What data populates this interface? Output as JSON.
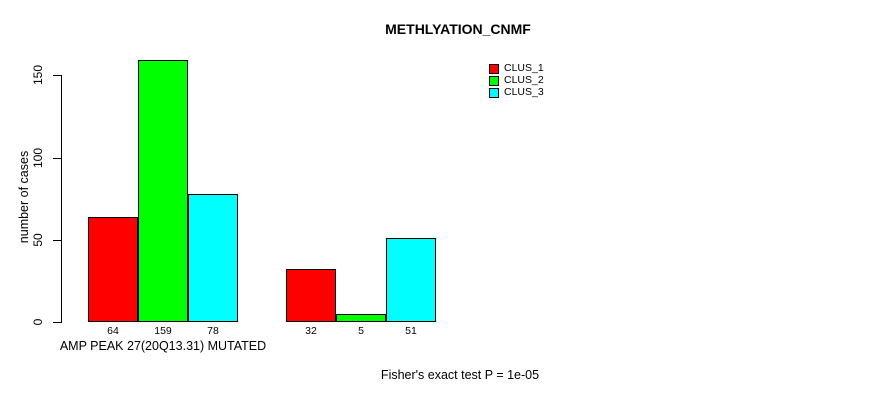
{
  "chart_data": {
    "type": "bar",
    "title": "METHLYATION_CNMF",
    "ylabel": "number of cases",
    "caption": "Fisher's exact test P = 1e-05",
    "yticks": [
      0,
      50,
      100,
      150
    ],
    "ylim": [
      0,
      165
    ],
    "grid": false,
    "legend_position": "top-right",
    "bar_value_labels": true,
    "groups": [
      {
        "label": "AMP PEAK 27(20Q13.31) MUTATED",
        "values": [
          64,
          159,
          78
        ]
      },
      {
        "label": "",
        "values": [
          32,
          5,
          51
        ]
      }
    ],
    "series": [
      {
        "name": "CLUS_1",
        "color": "#FF0000"
      },
      {
        "name": "CLUS_2",
        "color": "#00FF00"
      },
      {
        "name": "CLUS_3",
        "color": "#00FFFF"
      }
    ]
  },
  "colors": {
    "background": "#FFFFFF",
    "axis": "#000000",
    "text": "#000000",
    "bar_border": "#000000"
  }
}
